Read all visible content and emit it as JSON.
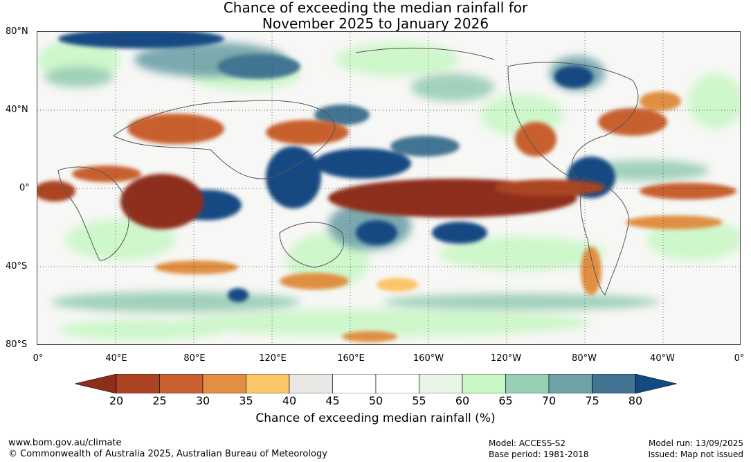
{
  "title": {
    "line1": "Chance of exceeding the median rainfall for",
    "line2": "November 2025 to January 2026"
  },
  "map": {
    "lat_labels": [
      "80°N",
      "40°N",
      "0°",
      "40°S",
      "80°S"
    ],
    "lon_labels": [
      "0°",
      "40°E",
      "80°E",
      "120°E",
      "160°E",
      "160°W",
      "120°W",
      "80°W",
      "40°W",
      "0°"
    ]
  },
  "colorbar": {
    "ticks": [
      "20",
      "25",
      "30",
      "35",
      "40",
      "45",
      "50",
      "55",
      "60",
      "65",
      "70",
      "75",
      "80"
    ],
    "low_extend_color": "#8e2d1c",
    "high_extend_color": "#124a82",
    "colors": [
      "#ab4423",
      "#c8612f",
      "#e08f43",
      "#fac667",
      "#e9e8e4",
      "#ffffff",
      "#ffffff",
      "#e8f5e6",
      "#c8f7c4",
      "#99cdb5",
      "#6ea1a8",
      "#437493"
    ],
    "caption": "Chance of exceeding median rainfall (%)"
  },
  "footer": {
    "url": "www.bom.gov.au/climate",
    "copyright": "© Commonwealth of Australia 2025, Australian Bureau of Meteorology",
    "model": "Model: ACCESS-S2",
    "base_period": "Base period: 1981-2018",
    "model_run": "Model run: 13/09/2025",
    "issued": "Issued: Map not issued"
  }
}
